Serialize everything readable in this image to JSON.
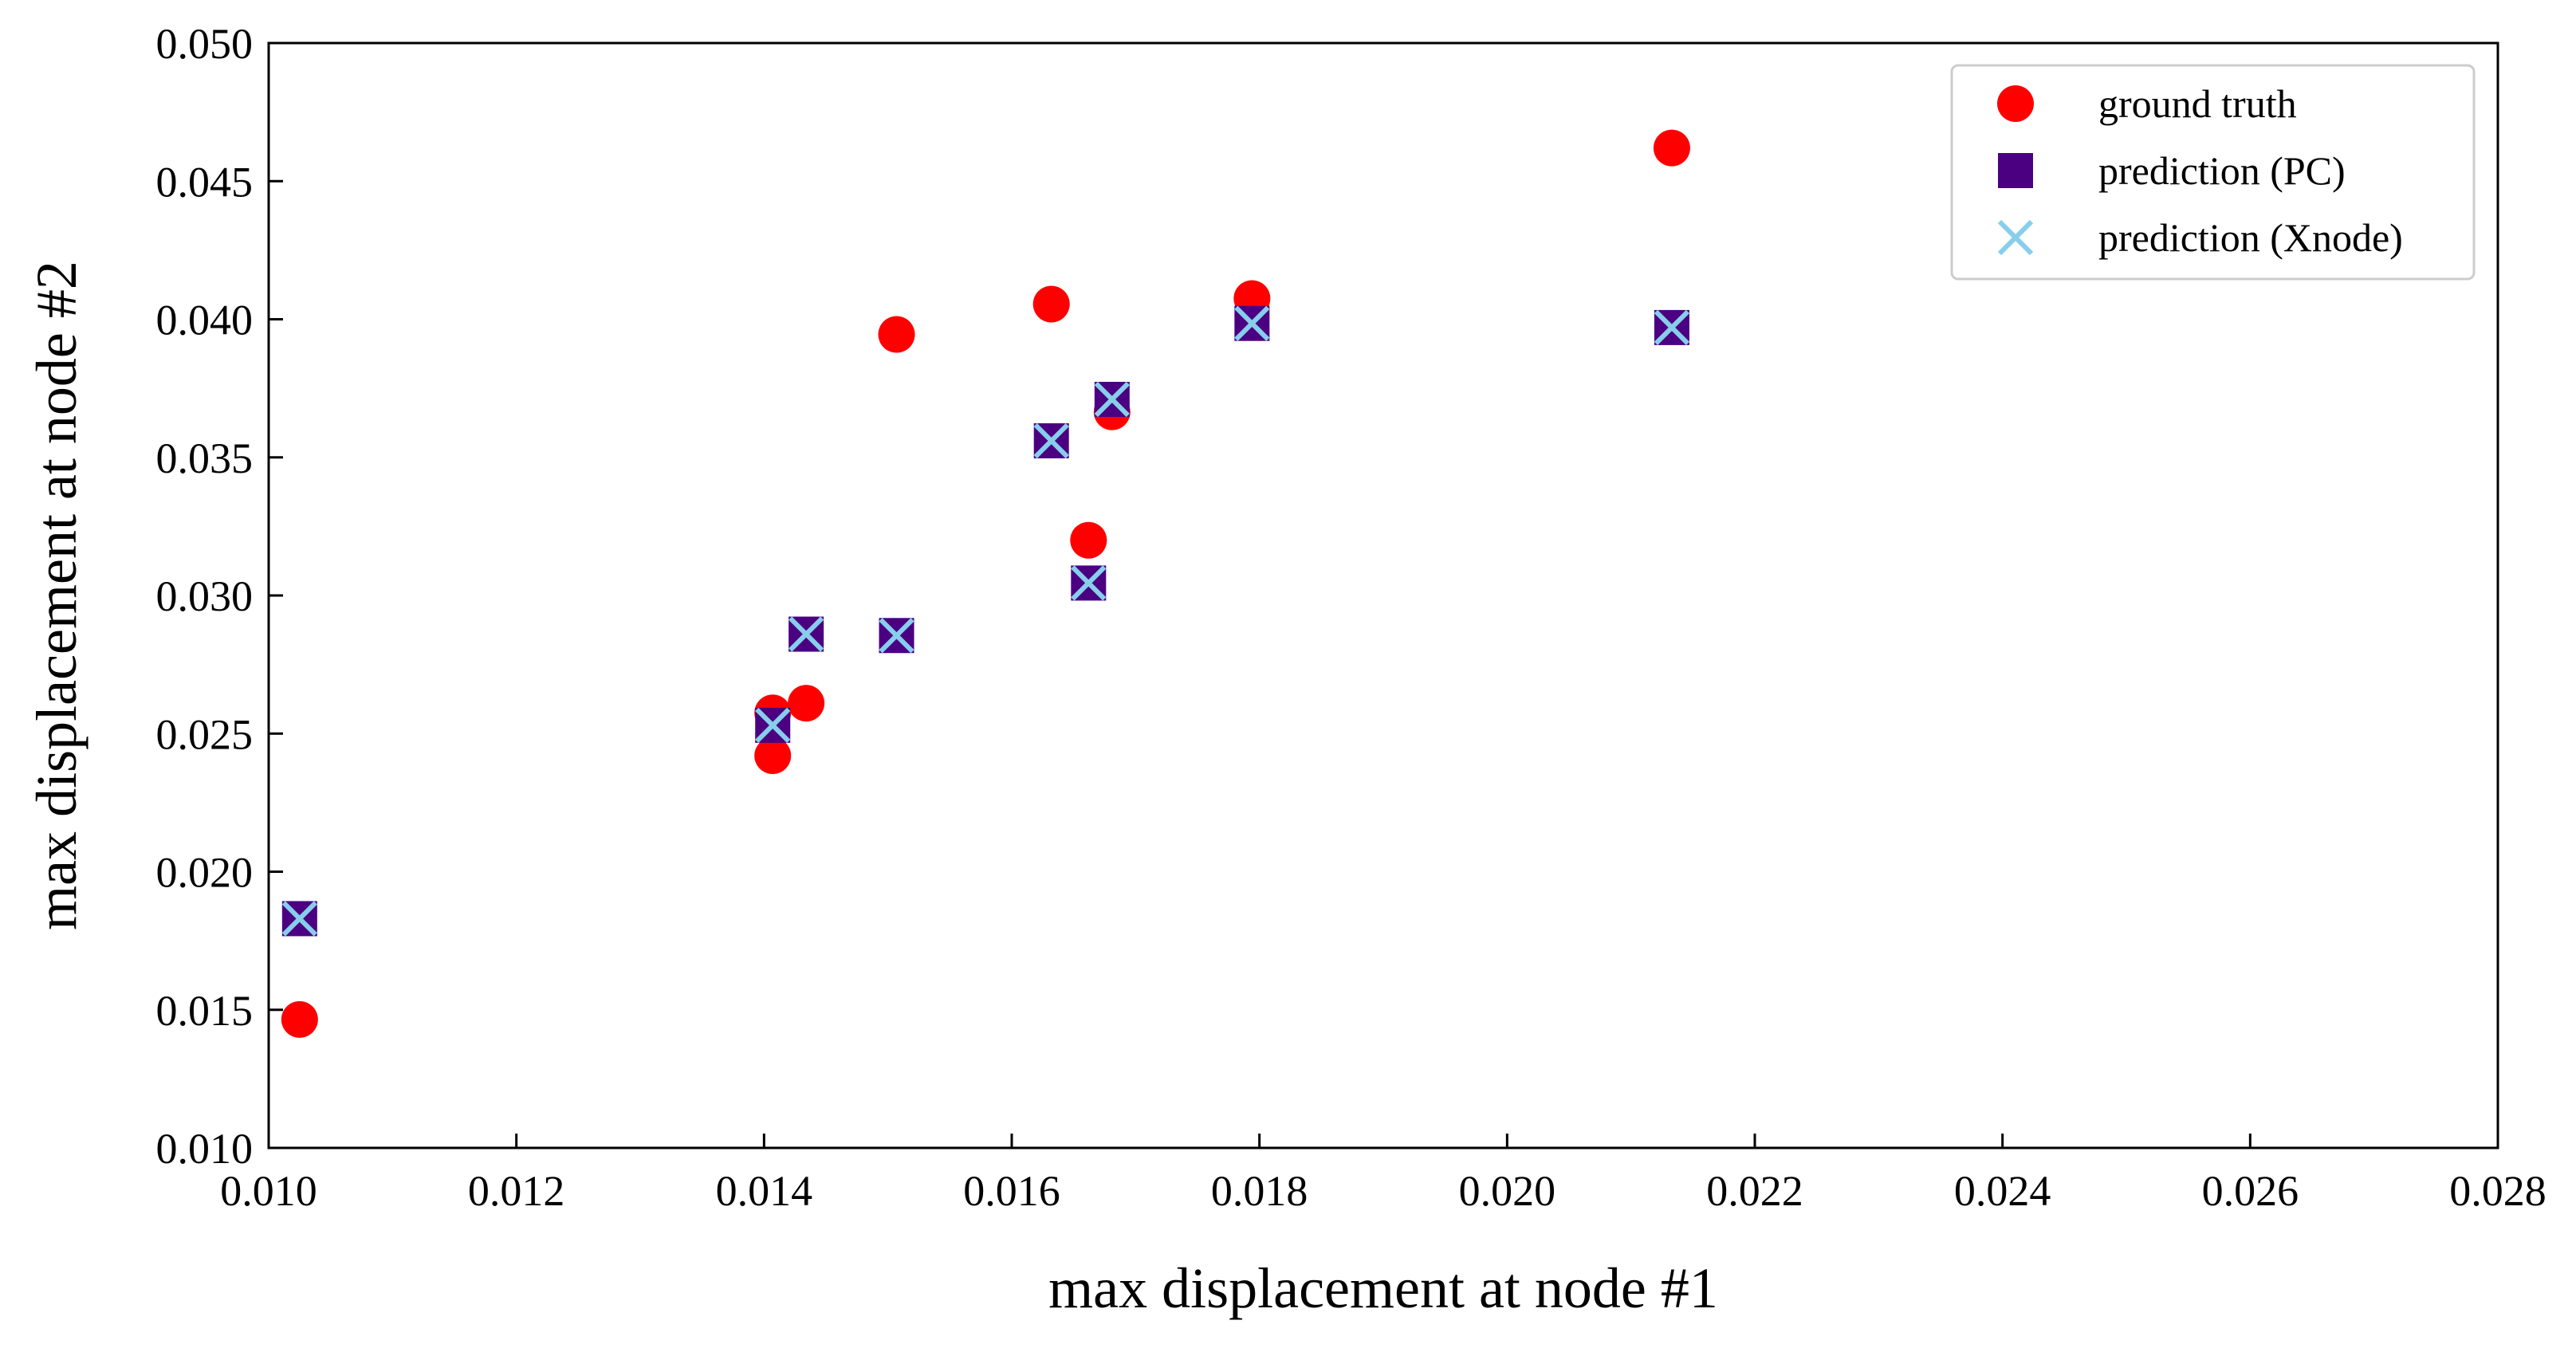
{
  "chart_data": {
    "type": "scatter",
    "xlabel": "max displacement at node #1",
    "ylabel": "max displacement at node #2",
    "xlim": [
      0.01,
      0.028
    ],
    "ylim": [
      0.01,
      0.05
    ],
    "xticks": [
      "0.010",
      "0.012",
      "0.014",
      "0.016",
      "0.018",
      "0.020",
      "0.022",
      "0.024",
      "0.026",
      "0.028"
    ],
    "yticks": [
      "0.010",
      "0.015",
      "0.020",
      "0.025",
      "0.030",
      "0.035",
      "0.040",
      "0.045",
      "0.050"
    ],
    "grid": false,
    "legend_position": "top-right",
    "series": [
      {
        "name": "ground truth",
        "marker": "circle",
        "color": "#ff0000",
        "x": [
          0.01025,
          0.01407,
          0.01407,
          0.01434,
          0.01507,
          0.01632,
          0.01662,
          0.01681,
          0.01794,
          0.02133
        ],
        "y": [
          0.01465,
          0.0242,
          0.02575,
          0.0261,
          0.03945,
          0.04055,
          0.032,
          0.03665,
          0.04075,
          0.0462
        ]
      },
      {
        "name": "prediction (PC)",
        "marker": "square",
        "color": "#4b0082",
        "x": [
          0.01025,
          0.01407,
          0.01434,
          0.01507,
          0.01632,
          0.01662,
          0.01681,
          0.01794,
          0.02133
        ],
        "y": [
          0.0183,
          0.0253,
          0.0286,
          0.02855,
          0.0356,
          0.03045,
          0.0371,
          0.03985,
          0.0397
        ]
      },
      {
        "name": "prediction (Xnode)",
        "marker": "x",
        "color": "#87ceeb",
        "x": [
          0.01025,
          0.01407,
          0.01434,
          0.01507,
          0.01632,
          0.01662,
          0.01681,
          0.01794,
          0.02133
        ],
        "y": [
          0.0183,
          0.0253,
          0.0286,
          0.02855,
          0.0356,
          0.03045,
          0.0371,
          0.03985,
          0.0397
        ]
      }
    ]
  }
}
